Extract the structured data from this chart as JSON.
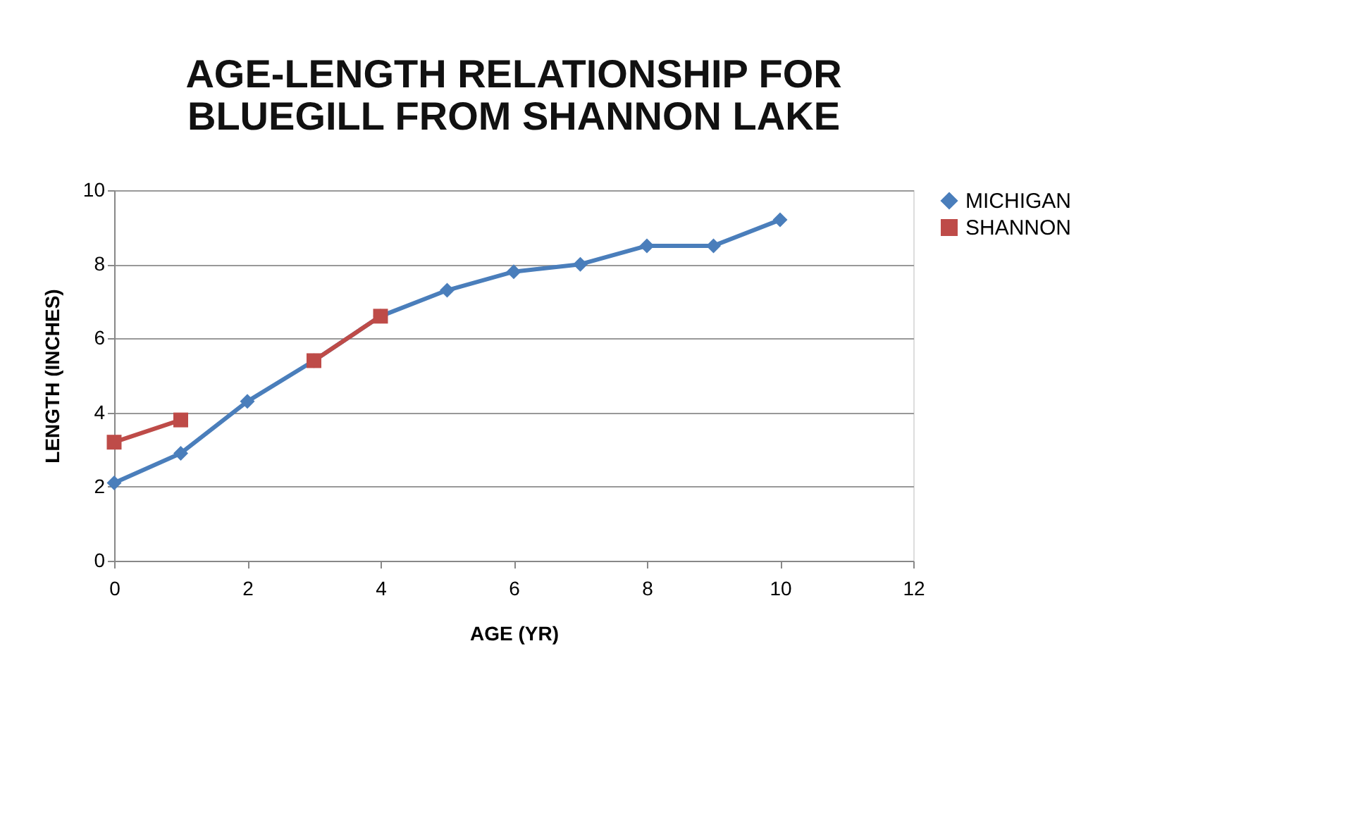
{
  "chart_data": {
    "type": "line",
    "title": "AGE-LENGTH RELATIONSHIP FOR BLUEGILL FROM SHANNON LAKE",
    "xlabel": "AGE (YR)",
    "ylabel": "LENGTH (INCHES)",
    "x": [
      0,
      1,
      2,
      3,
      4,
      5,
      6,
      7,
      8,
      9,
      10
    ],
    "series": [
      {
        "name": "MICHIGAN",
        "color": "#4a7ebb",
        "marker": "diamond",
        "values": [
          2.1,
          2.9,
          4.3,
          5.4,
          6.6,
          7.3,
          7.8,
          8.0,
          8.5,
          8.5,
          9.2
        ]
      },
      {
        "name": "SHANNON",
        "color": "#be4b48",
        "marker": "square",
        "x": [
          0,
          1,
          2,
          3,
          4
        ],
        "values": [
          3.2,
          3.8,
          null,
          5.4,
          6.6
        ]
      }
    ],
    "xlim": [
      0,
      12
    ],
    "xticks": [
      0,
      2,
      4,
      6,
      8,
      10,
      12
    ],
    "ylim": [
      0,
      10
    ],
    "yticks": [
      0,
      2,
      4,
      6,
      8,
      10
    ],
    "grid": "y",
    "legend": "right",
    "line_style": "solid"
  }
}
